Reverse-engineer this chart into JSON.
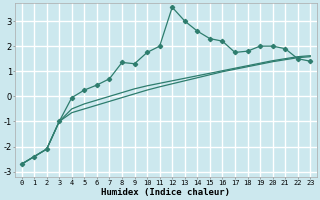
{
  "xlabel": "Humidex (Indice chaleur)",
  "ylabel": "",
  "background_color": "#cce8ee",
  "grid_color": "#ffffff",
  "line_color": "#2e7d6e",
  "xlim": [
    -0.5,
    23.5
  ],
  "ylim": [
    -3.2,
    3.7
  ],
  "x_ticks": [
    0,
    1,
    2,
    3,
    4,
    5,
    6,
    7,
    8,
    9,
    10,
    11,
    12,
    13,
    14,
    15,
    16,
    17,
    18,
    19,
    20,
    21,
    22,
    23
  ],
  "y_ticks": [
    -3,
    -2,
    -1,
    0,
    1,
    2,
    3
  ],
  "series1_x": [
    0,
    1,
    2,
    3,
    4,
    5,
    6,
    7,
    8,
    9,
    10,
    11,
    12,
    13,
    14,
    15,
    16,
    17,
    18,
    19,
    20,
    21,
    22,
    23
  ],
  "series1_y": [
    -2.7,
    -2.4,
    -2.1,
    -1.0,
    -0.05,
    0.25,
    0.45,
    0.7,
    1.35,
    1.3,
    1.75,
    2.0,
    3.55,
    3.0,
    2.6,
    2.3,
    2.2,
    1.75,
    1.8,
    2.0,
    2.0,
    1.9,
    1.5,
    1.4
  ],
  "series2_x": [
    0,
    1,
    2,
    3,
    4,
    5,
    6,
    7,
    8,
    9,
    10,
    11,
    12,
    13,
    14,
    15,
    16,
    17,
    18,
    19,
    20,
    21,
    22,
    23
  ],
  "series2_y": [
    -2.7,
    -2.4,
    -2.1,
    -1.0,
    -0.5,
    -0.3,
    -0.15,
    0.0,
    0.15,
    0.3,
    0.42,
    0.52,
    0.62,
    0.72,
    0.82,
    0.92,
    1.02,
    1.12,
    1.22,
    1.32,
    1.42,
    1.5,
    1.58,
    1.62
  ],
  "series3_x": [
    0,
    1,
    2,
    3,
    4,
    5,
    6,
    7,
    8,
    9,
    10,
    11,
    12,
    13,
    14,
    15,
    16,
    17,
    18,
    19,
    20,
    21,
    22,
    23
  ],
  "series3_y": [
    -2.7,
    -2.4,
    -2.1,
    -1.0,
    -0.65,
    -0.5,
    -0.35,
    -0.2,
    -0.05,
    0.1,
    0.25,
    0.38,
    0.5,
    0.62,
    0.74,
    0.86,
    0.98,
    1.08,
    1.18,
    1.28,
    1.38,
    1.46,
    1.54,
    1.58
  ]
}
